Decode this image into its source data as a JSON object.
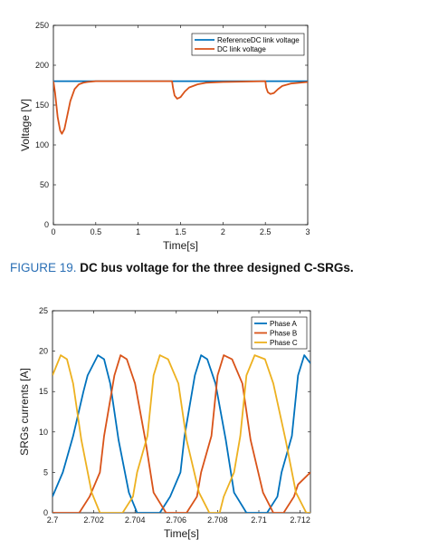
{
  "caption": {
    "number": "FIGURE 19.",
    "text": "DC bus voltage for the three designed C-SRGs."
  },
  "chart_data": [
    {
      "type": "line",
      "xlabel": "Time[s]",
      "ylabel": "Voltage [V]",
      "xlim": [
        0,
        3
      ],
      "ylim": [
        0,
        250
      ],
      "xticks": [
        0,
        0.5,
        1,
        1.5,
        2,
        2.5,
        3
      ],
      "xtick_labels": [
        "0",
        "0.5",
        "1",
        "1.5",
        "2",
        "2.5",
        "3"
      ],
      "yticks": [
        0,
        50,
        100,
        150,
        200,
        250
      ],
      "ytick_labels": [
        "0",
        "50",
        "100",
        "150",
        "200",
        "250"
      ],
      "legend_position": "top-right",
      "series": [
        {
          "name": "ReferenceDC link voltage",
          "color": "#0072BD",
          "x": [
            0,
            3
          ],
          "y": [
            180,
            180
          ]
        },
        {
          "name": "DC link voltage",
          "color": "#D95319",
          "x": [
            0,
            0.02,
            0.05,
            0.08,
            0.1,
            0.13,
            0.16,
            0.2,
            0.25,
            0.3,
            0.35,
            0.4,
            0.5,
            1.0,
            1.4,
            1.41,
            1.43,
            1.46,
            1.5,
            1.55,
            1.6,
            1.7,
            1.8,
            2.0,
            2.5,
            2.51,
            2.53,
            2.56,
            2.6,
            2.65,
            2.7,
            2.8,
            2.9,
            3.0
          ],
          "y": [
            180,
            165,
            135,
            118,
            114,
            120,
            135,
            155,
            170,
            176,
            178,
            179,
            180,
            180,
            180,
            172,
            162,
            158,
            160,
            167,
            172,
            176,
            178,
            179,
            180,
            172,
            166,
            164,
            165,
            170,
            174,
            177,
            178,
            179
          ]
        }
      ]
    },
    {
      "type": "line",
      "xlabel": "Time[s]",
      "ylabel": "SRGs currents [A]",
      "xlim": [
        2.7,
        2.7125
      ],
      "ylim": [
        0,
        25
      ],
      "xticks": [
        2.7,
        2.702,
        2.704,
        2.706,
        2.708,
        2.71,
        2.712
      ],
      "xtick_labels": [
        "2.7",
        "2.702",
        "2.704",
        "2.706",
        "2.708",
        "2.71",
        "2.712"
      ],
      "yticks": [
        0,
        5,
        10,
        15,
        20,
        25
      ],
      "ytick_labels": [
        "0",
        "5",
        "10",
        "15",
        "20",
        "25"
      ],
      "legend_position": "top-right",
      "series": [
        {
          "name": "Phase A",
          "color": "#0072BD",
          "x": [
            2.7,
            2.7005,
            2.701,
            2.7015,
            2.7017,
            2.7022,
            2.7025,
            2.7028,
            2.7032,
            2.7037,
            2.7041,
            2.7047,
            2.7052,
            2.7057,
            2.7062,
            2.7064,
            2.7069,
            2.7072,
            2.7075,
            2.7079,
            2.7084,
            2.7088,
            2.7094,
            2.7099,
            2.7104,
            2.7109,
            2.7111,
            2.7116,
            2.7119,
            2.7122,
            2.7125
          ],
          "y": [
            2.0,
            5.0,
            9.5,
            15.0,
            17.0,
            19.5,
            19.0,
            16.0,
            9.0,
            2.5,
            0,
            0,
            0,
            2.0,
            5.0,
            9.5,
            17.0,
            19.5,
            19.0,
            16.0,
            9.0,
            2.5,
            0,
            0,
            0,
            2.0,
            5.0,
            9.5,
            17.0,
            19.5,
            18.5
          ]
        },
        {
          "name": "Phase B",
          "color": "#D95319",
          "x": [
            2.7,
            2.7008,
            2.7013,
            2.7018,
            2.7023,
            2.7025,
            2.703,
            2.7033,
            2.7036,
            2.704,
            2.7045,
            2.7049,
            2.7055,
            2.706,
            2.7065,
            2.707,
            2.7072,
            2.7077,
            2.708,
            2.7083,
            2.7087,
            2.7092,
            2.7096,
            2.7102,
            2.7107,
            2.7112,
            2.7117,
            2.7119,
            2.7125
          ],
          "y": [
            0,
            0,
            0,
            2.0,
            5.0,
            9.5,
            17.0,
            19.5,
            19.0,
            16.0,
            9.0,
            2.5,
            0,
            0,
            0,
            2.0,
            5.0,
            9.5,
            17.0,
            19.5,
            19.0,
            16.0,
            9.0,
            2.5,
            0,
            0,
            2.0,
            3.5,
            5.0
          ]
        },
        {
          "name": "Phase C",
          "color": "#EDB120",
          "x": [
            2.7,
            2.7004,
            2.7007,
            2.701,
            2.7014,
            2.7019,
            2.7023,
            2.7029,
            2.7034,
            2.7039,
            2.7041,
            2.7046,
            2.7049,
            2.7052,
            2.7056,
            2.7061,
            2.7065,
            2.7071,
            2.7076,
            2.7081,
            2.7083,
            2.7088,
            2.7091,
            2.7094,
            2.7098,
            2.7103,
            2.7107,
            2.7113,
            2.7118,
            2.7123,
            2.7125
          ],
          "y": [
            17.0,
            19.5,
            19.0,
            16.0,
            9.0,
            2.5,
            0,
            0,
            0,
            2.0,
            5.0,
            9.5,
            17.0,
            19.5,
            19.0,
            16.0,
            9.0,
            2.5,
            0,
            0,
            2.0,
            5.0,
            9.5,
            17.0,
            19.5,
            19.0,
            16.0,
            9.0,
            2.5,
            0,
            0
          ]
        }
      ]
    }
  ]
}
